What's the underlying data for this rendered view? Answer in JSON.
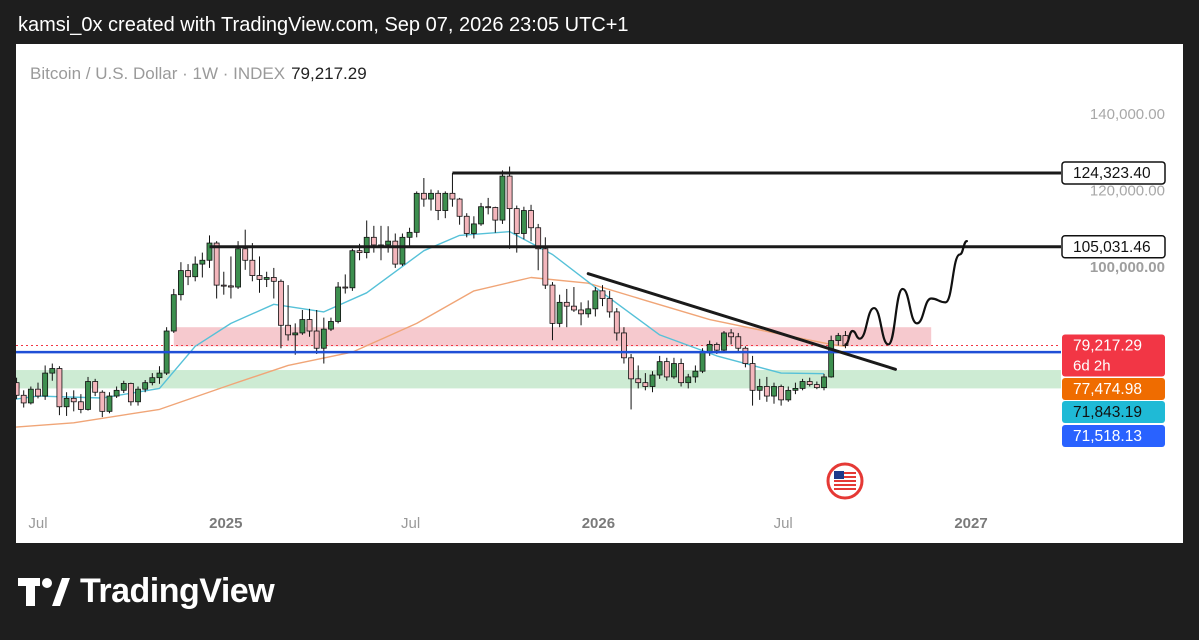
{
  "header": {
    "text": "kamsi_0x created with TradingView.com, Sep 07, 2026 23:05 UTC+1"
  },
  "symbol": {
    "name": "Bitcoin / U.S. Dollar · 1W · INDEX",
    "price": "79,217.29"
  },
  "footer": {
    "brand": "TradingView"
  },
  "colors": {
    "bull": "#3d8f4f",
    "bear": "#f4b6bc",
    "ema_fast": "#56c1d8",
    "ema_slow": "#f0a577",
    "support_band": "#cdebd3",
    "resistance_band": "#f6c6cb",
    "level_blue": "#1f4fd6"
  },
  "chart_data": {
    "type": "candlestick",
    "title": "Bitcoin / U.S. Dollar · 1W · INDEX",
    "last_price": 79217.29,
    "countdown": "6d 2h",
    "y_axis_ticks": [
      {
        "label": "140,000.00",
        "value": 140000
      },
      {
        "label": "120,000.00",
        "value": 120000
      },
      {
        "label": "100,000.00",
        "value": 100000
      }
    ],
    "x_axis_ticks": [
      {
        "label": "Jul",
        "date": "2024-07-01"
      },
      {
        "label": "2025",
        "date": "2025-01-01"
      },
      {
        "label": "Jul",
        "date": "2025-07-01"
      },
      {
        "label": "2026",
        "date": "2026-01-01"
      },
      {
        "label": "Jul",
        "date": "2026-07-01"
      },
      {
        "label": "2027",
        "date": "2027-01-01"
      }
    ],
    "price_labels": [
      {
        "text": "124,323.40",
        "value": 124323.4,
        "bg": "#ffffff",
        "fg": "#111111",
        "border": "#111111"
      },
      {
        "text": "105,031.46",
        "value": 105031.46,
        "bg": "#ffffff",
        "fg": "#111111",
        "border": "#111111"
      },
      {
        "text": "79,217.29",
        "value": 79217.29,
        "bg": "#f23645",
        "fg": "#ffffff",
        "sub": "6d 2h"
      },
      {
        "text": "77,474.98",
        "value": 77474.98,
        "bg": "#ef6c00",
        "fg": "#ffffff"
      },
      {
        "text": "71,843.19",
        "value": 71843.19,
        "bg": "#1fbad6",
        "fg": "#111111"
      },
      {
        "text": "71,518.13",
        "value": 71518.13,
        "bg": "#2962ff",
        "fg": "#ffffff"
      }
    ],
    "horizontal_levels": [
      {
        "name": "resistance-high",
        "value": 124323.4,
        "from": "2025-08-11"
      },
      {
        "name": "resistance-mid",
        "value": 105031.46,
        "from": "2024-12-16"
      },
      {
        "name": "support-blue",
        "value": 77474.98,
        "from": "2024-05-20"
      }
    ],
    "zones": [
      {
        "name": "resistance-zone",
        "from": "2024-11-11",
        "to": "2026-11-23",
        "low": 79000,
        "high": 84000
      },
      {
        "name": "support-zone",
        "from": "2024-05-20",
        "to": "2027-06-28",
        "low": 68000,
        "high": 72800
      }
    ],
    "trendline": {
      "from": {
        "date": "2025-12-22",
        "value": 98000
      },
      "to": {
        "date": "2026-10-19",
        "value": 73000
      }
    },
    "candles": [
      [
        "2024-05-20",
        69500,
        71800,
        67000,
        67800
      ],
      [
        "2024-05-27",
        67800,
        71000,
        66500,
        70500
      ],
      [
        "2024-06-03",
        70500,
        72000,
        68500,
        69500
      ],
      [
        "2024-06-10",
        69500,
        70800,
        65200,
        66200
      ],
      [
        "2024-06-17",
        66200,
        67500,
        63000,
        64200
      ],
      [
        "2024-06-24",
        64200,
        68500,
        63800,
        67800
      ],
      [
        "2024-07-01",
        67800,
        69500,
        65400,
        66000
      ],
      [
        "2024-07-08",
        66000,
        74000,
        65000,
        72000
      ],
      [
        "2024-07-15",
        72000,
        74500,
        70000,
        73200
      ],
      [
        "2024-07-22",
        73200,
        73800,
        61000,
        63200
      ],
      [
        "2024-07-29",
        63200,
        67000,
        60800,
        65400
      ],
      [
        "2024-08-05",
        65400,
        67500,
        62000,
        64500
      ],
      [
        "2024-08-12",
        64500,
        66500,
        61500,
        62500
      ],
      [
        "2024-08-19",
        62500,
        71000,
        62200,
        69800
      ],
      [
        "2024-08-26",
        69800,
        70500,
        66000,
        67000
      ],
      [
        "2024-09-02",
        67000,
        67500,
        60500,
        62000
      ],
      [
        "2024-09-09",
        62000,
        67000,
        61500,
        66000
      ],
      [
        "2024-09-16",
        66000,
        68500,
        65500,
        67500
      ],
      [
        "2024-09-23",
        67500,
        70000,
        66800,
        69300
      ],
      [
        "2024-09-30",
        69300,
        69500,
        63500,
        64500
      ],
      [
        "2024-10-07",
        64500,
        68500,
        63500,
        67800
      ],
      [
        "2024-10-14",
        67800,
        70200,
        67000,
        69500
      ],
      [
        "2024-10-21",
        69500,
        72000,
        68800,
        70800
      ],
      [
        "2024-10-28",
        70800,
        73800,
        69200,
        72000
      ],
      [
        "2024-11-04",
        72000,
        84000,
        71500,
        83000
      ],
      [
        "2024-11-11",
        83000,
        94000,
        82500,
        92500
      ],
      [
        "2024-11-18",
        92500,
        101000,
        91000,
        98800
      ],
      [
        "2024-11-25",
        98800,
        100500,
        95000,
        97200
      ],
      [
        "2024-12-02",
        97200,
        102500,
        96000,
        100500
      ],
      [
        "2024-12-09",
        100500,
        103500,
        97000,
        101500
      ],
      [
        "2024-12-16",
        101500,
        108000,
        99500,
        106000
      ],
      [
        "2024-12-23",
        106000,
        106500,
        91500,
        95000
      ],
      [
        "2024-12-30",
        95000,
        98500,
        92500,
        94800
      ],
      [
        "2025-01-06",
        94800,
        102500,
        91500,
        94500
      ],
      [
        "2025-01-13",
        94500,
        106500,
        94000,
        104500
      ],
      [
        "2025-01-20",
        104500,
        109500,
        99000,
        101500
      ],
      [
        "2025-01-27",
        101500,
        106000,
        96000,
        97500
      ],
      [
        "2025-02-03",
        97500,
        102500,
        93000,
        96500
      ],
      [
        "2025-02-10",
        96500,
        98500,
        94500,
        97000
      ],
      [
        "2025-02-17",
        97000,
        99500,
        91500,
        96000
      ],
      [
        "2025-02-24",
        96000,
        96500,
        78500,
        84500
      ],
      [
        "2025-03-03",
        84500,
        95000,
        80500,
        82000
      ],
      [
        "2025-03-10",
        82000,
        85000,
        76800,
        82500
      ],
      [
        "2025-03-17",
        82500,
        88500,
        82000,
        86000
      ],
      [
        "2025-03-24",
        86000,
        88800,
        81500,
        83000
      ],
      [
        "2025-03-31",
        83000,
        88500,
        77000,
        78500
      ],
      [
        "2025-04-07",
        78500,
        86500,
        74500,
        83500
      ],
      [
        "2025-04-14",
        83500,
        86500,
        83000,
        85500
      ],
      [
        "2025-04-21",
        85500,
        95800,
        85000,
        94500
      ],
      [
        "2025-04-28",
        94500,
        97800,
        92800,
        94300
      ],
      [
        "2025-05-05",
        94300,
        104500,
        93500,
        104000
      ],
      [
        "2025-05-12",
        104000,
        105800,
        101500,
        103500
      ],
      [
        "2025-05-19",
        103500,
        111900,
        102000,
        107500
      ],
      [
        "2025-05-26",
        107500,
        110500,
        103500,
        105500
      ],
      [
        "2025-06-02",
        105500,
        110500,
        101500,
        105500
      ],
      [
        "2025-06-09",
        105500,
        110400,
        103500,
        106500
      ],
      [
        "2025-06-16",
        106500,
        108500,
        99500,
        100500
      ],
      [
        "2025-06-23",
        100500,
        108500,
        100000,
        107500
      ],
      [
        "2025-06-30",
        107500,
        110000,
        105000,
        108800
      ],
      [
        "2025-07-07",
        108800,
        119500,
        107500,
        119000
      ],
      [
        "2025-07-14",
        119000,
        123000,
        115500,
        117500
      ],
      [
        "2025-07-21",
        117500,
        120000,
        114500,
        119000
      ],
      [
        "2025-07-28",
        119000,
        119800,
        112000,
        114500
      ],
      [
        "2025-08-04",
        114500,
        119500,
        112500,
        119000
      ],
      [
        "2025-08-11",
        119000,
        124323,
        115500,
        117500
      ],
      [
        "2025-08-18",
        117500,
        117800,
        110800,
        113000
      ],
      [
        "2025-08-25",
        113000,
        113800,
        107500,
        108500
      ],
      [
        "2025-09-01",
        108500,
        113000,
        107200,
        111000
      ],
      [
        "2025-09-08",
        111000,
        116500,
        110500,
        115500
      ],
      [
        "2025-09-15",
        115500,
        117800,
        113500,
        115300
      ],
      [
        "2025-09-22",
        115300,
        115500,
        108700,
        112000
      ],
      [
        "2025-09-29",
        112000,
        125000,
        111000,
        123500
      ],
      [
        "2025-10-06",
        123500,
        126000,
        104500,
        115000
      ],
      [
        "2025-10-13",
        115000,
        115800,
        103500,
        108500
      ],
      [
        "2025-10-20",
        108500,
        115500,
        107000,
        114500
      ],
      [
        "2025-10-27",
        114500,
        116000,
        106500,
        110000
      ],
      [
        "2025-11-03",
        110000,
        111000,
        98900,
        104500
      ],
      [
        "2025-11-10",
        104500,
        107500,
        94000,
        95000
      ],
      [
        "2025-11-17",
        95000,
        95800,
        80600,
        85000
      ],
      [
        "2025-11-24",
        85000,
        92500,
        84000,
        90500
      ],
      [
        "2025-12-01",
        90500,
        94000,
        84000,
        89500
      ],
      [
        "2025-12-08",
        89500,
        94500,
        88000,
        88500
      ],
      [
        "2025-12-15",
        88500,
        90500,
        84500,
        87500
      ],
      [
        "2025-12-22",
        87500,
        91000,
        86500,
        88800
      ],
      [
        "2025-12-29",
        88800,
        94500,
        86800,
        93500
      ],
      [
        "2026-01-05",
        93500,
        95000,
        89500,
        91500
      ],
      [
        "2026-01-12",
        91500,
        93500,
        86500,
        88000
      ],
      [
        "2026-01-19",
        88000,
        89000,
        80500,
        82500
      ],
      [
        "2026-01-26",
        82500,
        84000,
        74500,
        76000
      ],
      [
        "2026-02-02",
        76000,
        77000,
        62500,
        70500
      ],
      [
        "2026-02-09",
        70500,
        74000,
        68000,
        69500
      ],
      [
        "2026-02-16",
        69500,
        72000,
        67500,
        68500
      ],
      [
        "2026-02-23",
        68500,
        72500,
        67000,
        71500
      ],
      [
        "2026-03-02",
        71500,
        76500,
        70500,
        75000
      ],
      [
        "2026-03-09",
        75000,
        76000,
        70000,
        71000
      ],
      [
        "2026-03-16",
        71000,
        76000,
        70500,
        74500
      ],
      [
        "2026-03-23",
        74500,
        75800,
        68500,
        69500
      ],
      [
        "2026-03-30",
        69500,
        71800,
        68000,
        71000
      ],
      [
        "2026-04-06",
        71000,
        74000,
        69500,
        72500
      ],
      [
        "2026-04-13",
        72500,
        78500,
        72000,
        77500
      ],
      [
        "2026-04-20",
        77500,
        80500,
        76500,
        79500
      ],
      [
        "2026-04-27",
        79500,
        80000,
        77000,
        78000
      ],
      [
        "2026-05-04",
        78000,
        83000,
        77500,
        82500
      ],
      [
        "2026-05-11",
        82500,
        83500,
        79500,
        81500
      ],
      [
        "2026-05-18",
        81500,
        82500,
        77500,
        78500
      ],
      [
        "2026-05-25",
        78500,
        79000,
        73500,
        74500
      ],
      [
        "2026-06-01",
        74500,
        76500,
        63500,
        67500
      ],
      [
        "2026-06-08",
        67500,
        70500,
        65000,
        68500
      ],
      [
        "2026-06-15",
        68500,
        71000,
        64500,
        66000
      ],
      [
        "2026-06-22",
        66000,
        69500,
        64000,
        68500
      ],
      [
        "2026-06-29",
        68500,
        69000,
        63500,
        65000
      ],
      [
        "2026-07-06",
        65000,
        68500,
        64500,
        67500
      ],
      [
        "2026-07-13",
        67500,
        69500,
        66500,
        68000
      ],
      [
        "2026-07-20",
        68000,
        70500,
        67500,
        69800
      ],
      [
        "2026-07-27",
        69800,
        70800,
        68500,
        69000
      ],
      [
        "2026-08-03",
        69000,
        69800,
        67800,
        68200
      ],
      [
        "2026-08-10",
        68200,
        71800,
        67500,
        71000
      ],
      [
        "2026-08-17",
        71000,
        81800,
        70800,
        80500
      ],
      [
        "2026-08-24",
        80500,
        82500,
        79200,
        81800
      ],
      [
        "2026-08-31",
        81800,
        83000,
        78500,
        79217.29
      ]
    ],
    "ema_fast": [
      [
        "2024-05-20",
        64500
      ],
      [
        "2024-07-01",
        66000
      ],
      [
        "2024-09-02",
        65500
      ],
      [
        "2024-10-28",
        68000
      ],
      [
        "2024-12-02",
        79000
      ],
      [
        "2025-01-06",
        85000
      ],
      [
        "2025-02-17",
        90000
      ],
      [
        "2025-04-07",
        88000
      ],
      [
        "2025-05-19",
        93000
      ],
      [
        "2025-07-14",
        104000
      ],
      [
        "2025-08-18",
        108000
      ],
      [
        "2025-10-06",
        109000
      ],
      [
        "2025-11-17",
        103000
      ],
      [
        "2026-01-05",
        93000
      ],
      [
        "2026-03-02",
        82000
      ],
      [
        "2026-04-27",
        76500
      ],
      [
        "2026-06-29",
        72000
      ],
      [
        "2026-08-10",
        71843.19
      ]
    ],
    "ema_slow": [
      [
        "2024-05-20",
        57500
      ],
      [
        "2024-08-05",
        59000
      ],
      [
        "2024-10-28",
        62500
      ],
      [
        "2025-01-06",
        69000
      ],
      [
        "2025-03-03",
        74000
      ],
      [
        "2025-05-05",
        77500
      ],
      [
        "2025-07-07",
        85000
      ],
      [
        "2025-09-01",
        93500
      ],
      [
        "2025-10-27",
        97000
      ],
      [
        "2025-12-22",
        95500
      ],
      [
        "2026-02-16",
        91000
      ],
      [
        "2026-04-20",
        86000
      ],
      [
        "2026-06-22",
        82500
      ],
      [
        "2026-08-17",
        79500
      ],
      [
        "2026-08-31",
        79000
      ]
    ],
    "projection": [
      [
        "2026-08-31",
        79500
      ],
      [
        "2026-09-07",
        83000
      ],
      [
        "2026-09-14",
        81000
      ],
      [
        "2026-09-28",
        89000
      ],
      [
        "2026-10-12",
        79500
      ],
      [
        "2026-10-26",
        94000
      ],
      [
        "2026-11-09",
        85000
      ],
      [
        "2026-11-23",
        91500
      ],
      [
        "2026-12-07",
        90500
      ],
      [
        "2026-12-21",
        103000
      ],
      [
        "2026-12-28",
        106500
      ]
    ]
  }
}
